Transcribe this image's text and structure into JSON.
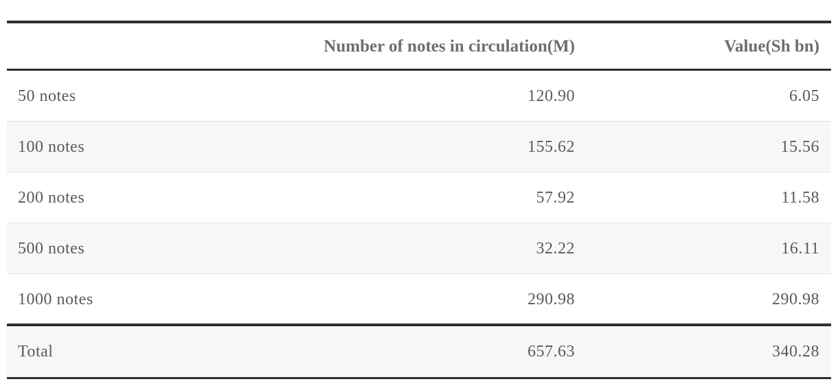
{
  "table": {
    "columns": [
      "Number of notes in circulation(M)",
      "Value(Sh bn)"
    ],
    "rows": [
      [
        "50 notes",
        "120.90",
        "6.05"
      ],
      [
        "100 notes",
        "155.62",
        "15.56"
      ],
      [
        "200 notes",
        "57.92",
        "11.58"
      ],
      [
        "500 notes",
        "32.22",
        "16.11"
      ],
      [
        "1000 notes",
        "290.98",
        "290.98"
      ]
    ],
    "total": [
      "Total",
      "657.63",
      "340.28"
    ]
  }
}
